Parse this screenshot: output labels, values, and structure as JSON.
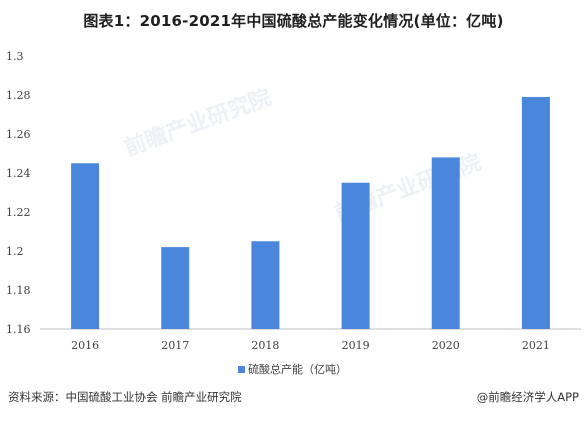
{
  "title": "图表1：2016-2021年中国硫酸总产能变化情况(单位：亿吨)",
  "chart_data": {
    "type": "bar",
    "categories": [
      "2016",
      "2017",
      "2018",
      "2019",
      "2020",
      "2021"
    ],
    "series": [
      {
        "name": "硫酸总产能（亿吨）",
        "values": [
          1.245,
          1.202,
          1.205,
          1.235,
          1.248,
          1.279
        ]
      }
    ],
    "ylim": [
      1.16,
      1.3
    ],
    "yticks": [
      "1.16",
      "1.18",
      "1.2",
      "1.22",
      "1.24",
      "1.26",
      "1.28",
      "1.3"
    ],
    "grid": false,
    "legend": "bottom",
    "bar_color": "#4a86dc"
  },
  "footer": {
    "source": "资料来源：中国硫酸工业协会 前瞻产业研究院",
    "brand": "@前瞻经济学人APP"
  },
  "watermark": "前瞻产业研究院"
}
